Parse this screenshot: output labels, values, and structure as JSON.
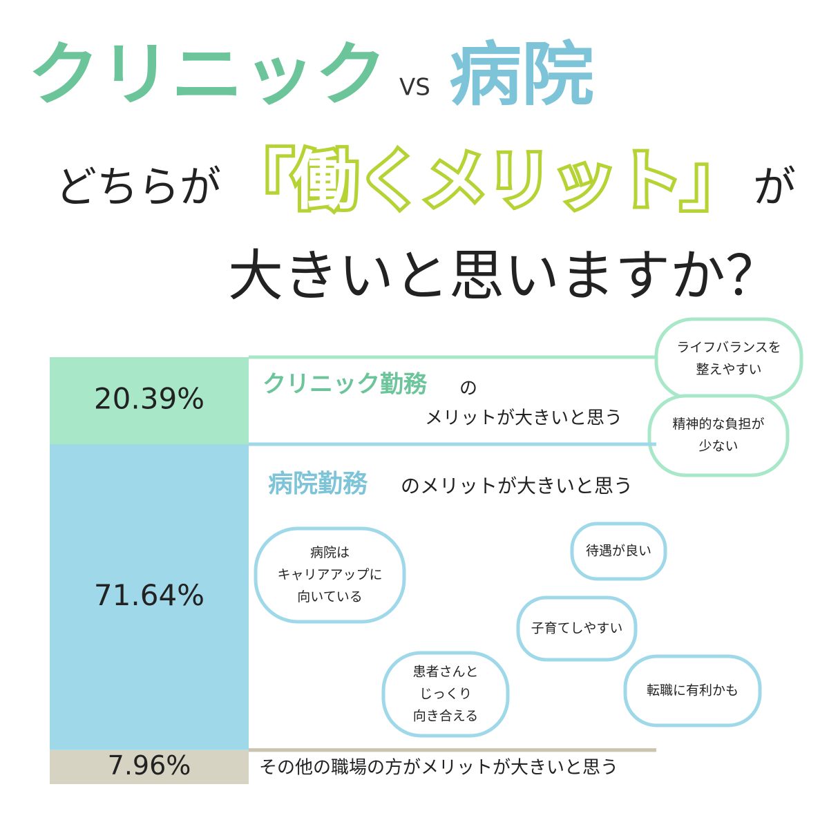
{
  "chart_data": {
    "type": "stacked-column",
    "title": [
      "クリニック",
      "VS",
      "病院",
      "どちらが",
      "「働くメリット」",
      "が",
      "大きいと思いますか？"
    ],
    "series": [
      {
        "name": "クリニック勤務",
        "label": [
          "の",
          "メリットが大きいと思う"
        ],
        "color": "#a8e8c8",
        "stroke": "#a8e8c8",
        "values": [
          20.39
        ],
        "value_labels": [
          "20.39%"
        ],
        "comments": [
          [
            "ライフバランスを",
            "整えやすい"
          ],
          [
            "精神的な負担が",
            "少ない"
          ]
        ]
      },
      {
        "name": "病院勤務",
        "label": [
          "のメリットが大きいと思う"
        ],
        "color": "#9fd8e8",
        "stroke": "#9fd8e8",
        "values": [
          71.64
        ],
        "value_labels": [
          "71.64%"
        ],
        "comments": [
          [
            "病院は",
            "キャリアアップに",
            "向いている"
          ],
          [
            "待遇が良い"
          ],
          [
            "子育てしやすい"
          ],
          [
            "患者さんと",
            "じっくり",
            "向き合える"
          ],
          [
            "転職に有利かも"
          ]
        ]
      },
      {
        "label": [
          "その他の職場の方がメリットが大きいと思う"
        ],
        "color": "#d6d3c2",
        "stroke": "#c9c5b0",
        "values": [
          7.96
        ],
        "value_labels": [
          "7.96%"
        ],
        "comments": []
      }
    ]
  }
}
